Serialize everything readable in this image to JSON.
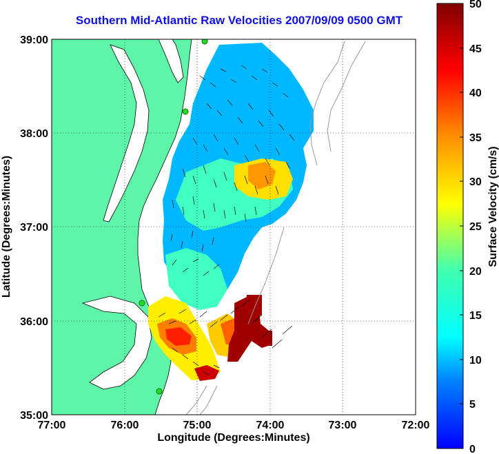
{
  "title": "Southern Mid-Atlantic Raw Velocities 2007/09/09 0500 GMT",
  "map": {
    "xlabel": "Longitude (Degrees:Minutes)",
    "ylabel": "Latitude (Degrees:Minutes)",
    "lon_range": [
      -77,
      -72
    ],
    "lat_range": [
      35,
      39
    ],
    "lon_ticks": [
      "77:00",
      "76:00",
      "75:00",
      "74:00",
      "73:00",
      "72:00"
    ],
    "lat_ticks": [
      "35:00",
      "36:00",
      "37:00",
      "38:00",
      "39:00"
    ],
    "grid": "dotted",
    "land_color": "#5ef5a8",
    "stations": [
      {
        "lon": -74.9,
        "lat": 38.98
      },
      {
        "lon": -75.15,
        "lat": 38.3
      },
      {
        "lon": -75.7,
        "lat": 36.2
      },
      {
        "lon": -75.5,
        "lat": 35.26
      }
    ]
  },
  "colorbar": {
    "label": "Surface Velocity (cm/s)",
    "range": [
      0,
      50
    ],
    "ticks": [
      "0",
      "5",
      "10",
      "15",
      "20",
      "25",
      "30",
      "35",
      "40",
      "45",
      "50"
    ],
    "colormap": [
      "#0000ff",
      "#00a0ff",
      "#00ffff",
      "#80ff80",
      "#ffff00",
      "#ff8000",
      "#ff0000",
      "#800000"
    ]
  }
}
